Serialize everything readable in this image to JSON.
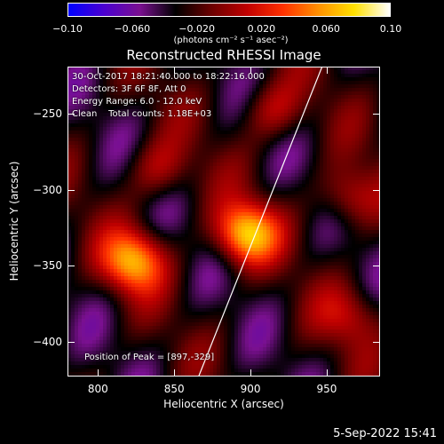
{
  "colorbar": {
    "ticks": [
      "−0.10",
      "−0.060",
      "−0.020",
      "0.020",
      "0.060",
      "0.10"
    ],
    "unit": "(photons cm⁻² s⁻¹ asec⁻²)",
    "colors": [
      "#0000ff",
      "#4b00d0",
      "#7a1090",
      "#000000",
      "#6b0000",
      "#c00000",
      "#ff3000",
      "#ff9000",
      "#ffe000",
      "#ffffff"
    ]
  },
  "plot": {
    "title": "Reconstructed RHESSI Image",
    "info": [
      "30-Oct-2017 18:21:40.000 to 18:22:16.000",
      "Detectors: 3F 6F 8F, Att 0",
      "Energy Range: 6.0 - 12.0 keV",
      "Clean    Total counts: 1.18E+03"
    ],
    "peak_label": "Position of Peak = [897,-329]"
  },
  "footer": {
    "timestamp": "5-Sep-2022 15:41"
  },
  "chart_data": {
    "type": "heatmap",
    "title": "Reconstructed RHESSI Image",
    "xlabel": "Heliocentric X (arcsec)",
    "ylabel": "Heliocentric Y (arcsec)",
    "xlim": [
      780,
      985
    ],
    "ylim": [
      -423,
      -219
    ],
    "xticks": [
      800,
      850,
      900,
      950
    ],
    "yticks": [
      -250,
      -300,
      -350,
      -400
    ],
    "color_range": [
      -0.1,
      0.1
    ],
    "peak": [
      897,
      -329
    ],
    "limb_line": [
      [
        866,
        -423
      ],
      [
        947,
        -219
      ]
    ],
    "sources": [
      {
        "x": 897,
        "y": -329,
        "peak": 0.1
      },
      {
        "x": 823,
        "y": -347,
        "peak": 0.09
      },
      {
        "x": 965,
        "y": -305,
        "peak": 0.045
      },
      {
        "x": 840,
        "y": -287,
        "peak": 0.038
      },
      {
        "x": 915,
        "y": -248,
        "peak": 0.04
      },
      {
        "x": 965,
        "y": -383,
        "peak": 0.035
      }
    ]
  }
}
